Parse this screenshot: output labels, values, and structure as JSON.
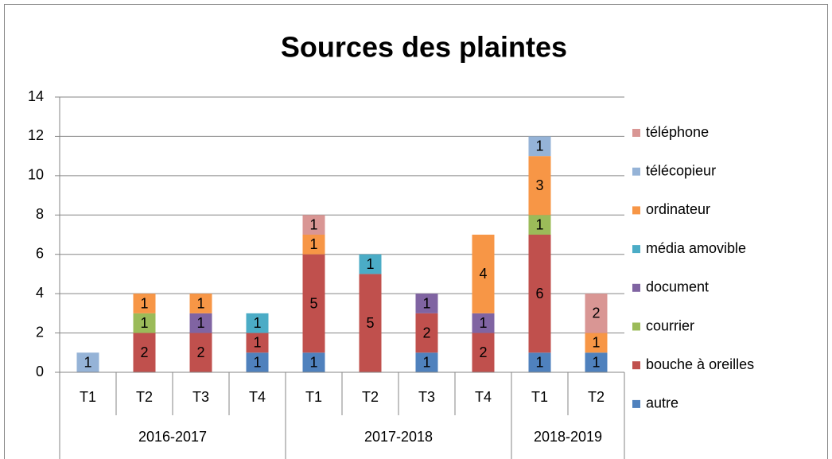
{
  "chart_data": {
    "type": "stacked_bar",
    "title": "Sources des plaintes",
    "categories": [
      "T1",
      "T2",
      "T3",
      "T4",
      "T1",
      "T2",
      "T3",
      "T4",
      "T1",
      "T2"
    ],
    "groups": [
      {
        "label": "2016-2017",
        "span": 4
      },
      {
        "label": "2017-2018",
        "span": 4
      },
      {
        "label": "2018-2019",
        "span": 2
      }
    ],
    "series": [
      {
        "name": "autre",
        "color": "#4f81bd",
        "values": [
          null,
          null,
          null,
          1,
          1,
          null,
          1,
          null,
          1,
          1
        ]
      },
      {
        "name": "bouche à oreilles",
        "color": "#c0504d",
        "values": [
          null,
          2,
          2,
          1,
          5,
          5,
          2,
          2,
          6,
          null
        ]
      },
      {
        "name": "courrier",
        "color": "#9bbb59",
        "values": [
          null,
          1,
          null,
          null,
          null,
          null,
          null,
          null,
          1,
          null
        ]
      },
      {
        "name": "document",
        "color": "#8064a2",
        "values": [
          null,
          null,
          1,
          null,
          null,
          null,
          1,
          1,
          null,
          null
        ]
      },
      {
        "name": "média amovible",
        "color": "#4bacc6",
        "values": [
          null,
          null,
          null,
          1,
          null,
          1,
          null,
          null,
          null,
          null
        ]
      },
      {
        "name": "ordinateur",
        "color": "#f79646",
        "values": [
          null,
          1,
          1,
          null,
          1,
          null,
          null,
          4,
          3,
          1
        ]
      },
      {
        "name": "télécopieur",
        "color": "#95b3d7",
        "values": [
          1,
          null,
          null,
          null,
          null,
          null,
          null,
          null,
          1,
          null
        ]
      },
      {
        "name": "téléphone",
        "color": "#d99694",
        "values": [
          null,
          null,
          null,
          null,
          1,
          null,
          null,
          null,
          null,
          2
        ]
      }
    ],
    "ylim": [
      0,
      14
    ],
    "yticks": [
      0,
      2,
      4,
      6,
      8,
      10,
      12,
      14
    ],
    "grid": true,
    "legend": "right",
    "data_labels": true
  }
}
